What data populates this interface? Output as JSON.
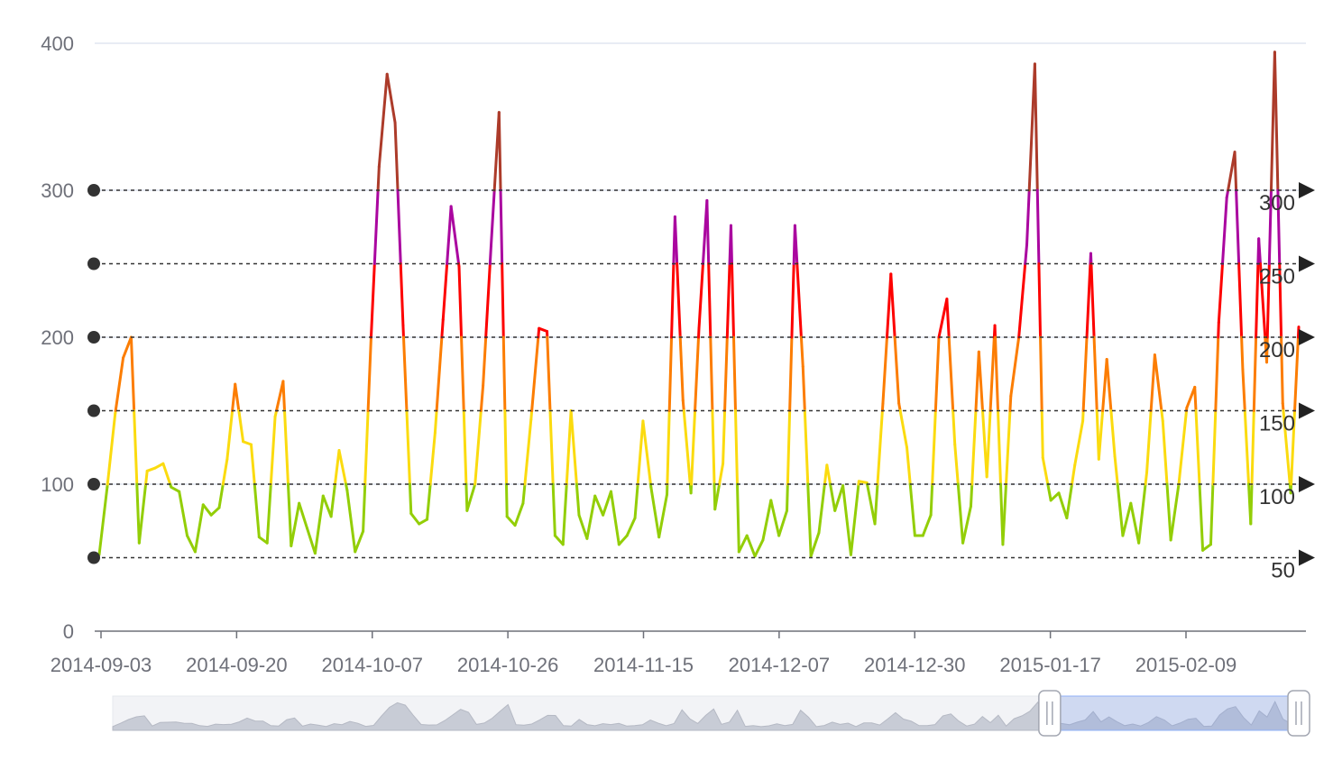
{
  "chart_data": {
    "type": "line",
    "title": "",
    "xlabel": "",
    "ylabel": "",
    "ylim": [
      0,
      400
    ],
    "yticks": [
      "0",
      "100",
      "200",
      "300",
      "400"
    ],
    "xtick_labels": [
      "2014-09-03",
      "2014-09-20",
      "2014-10-07",
      "2014-10-26",
      "2014-11-15",
      "2014-12-07",
      "2014-12-30",
      "2015-01-17",
      "2015-02-09"
    ],
    "grid": "horizontal",
    "visual_map_pieces": [
      {
        "lte": 50,
        "color": "#93CE07"
      },
      {
        "gt": 50,
        "lte": 100,
        "color": "#93CE07"
      },
      {
        "gt": 100,
        "lte": 150,
        "color": "#FBDB0F"
      },
      {
        "gt": 150,
        "lte": 200,
        "color": "#FC7D02"
      },
      {
        "gt": 200,
        "lte": 250,
        "color": "#FD0100"
      },
      {
        "gt": 250,
        "lte": 300,
        "color": "#AA069F"
      },
      {
        "gt": 300,
        "color": "#AC3B2A"
      }
    ],
    "mark_lines": [
      "50",
      "100",
      "150",
      "200",
      "250",
      "300"
    ],
    "series": [
      {
        "values": [
          52,
          98,
          148,
          186,
          200,
          60,
          109,
          111,
          114,
          98,
          95,
          65,
          54,
          86,
          79,
          84,
          117,
          168,
          129,
          127,
          64,
          60,
          146,
          170,
          58,
          87,
          70,
          53,
          92,
          78,
          123,
          96,
          54,
          68,
          200,
          316,
          379,
          346,
          208,
          80,
          73,
          76,
          135,
          212,
          289,
          248,
          82,
          100,
          167,
          262,
          353,
          78,
          72,
          87,
          144,
          206,
          204,
          65,
          59,
          150,
          79,
          63,
          92,
          79,
          95,
          59,
          65,
          77,
          143,
          98,
          64,
          93,
          282,
          157,
          94,
          206,
          293,
          83,
          114,
          276,
          54,
          65,
          51,
          62,
          89,
          65,
          82,
          276,
          180,
          51,
          67,
          113,
          82,
          99,
          52,
          102,
          101,
          73,
          155,
          243,
          155,
          125,
          65,
          65,
          79,
          200,
          226,
          127,
          60,
          85,
          190,
          105,
          208,
          59,
          160,
          200,
          263,
          386,
          118,
          89,
          94,
          77,
          113,
          143,
          257,
          117,
          185,
          119,
          65,
          87,
          60,
          108,
          188,
          143,
          62,
          100,
          152,
          166,
          55,
          59,
          210,
          295,
          326,
          178,
          73,
          267,
          183,
          394,
          155,
          94,
          207
        ]
      }
    ],
    "data_zoom": {
      "start_fraction": 0.79,
      "end_fraction": 1.0
    }
  }
}
